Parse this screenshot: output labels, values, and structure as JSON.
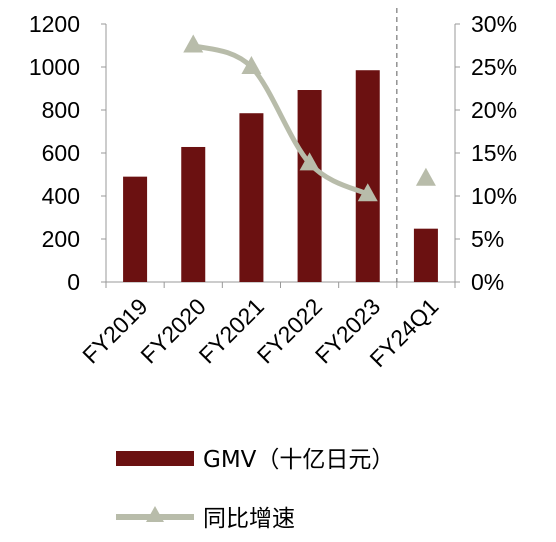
{
  "chart_data": {
    "type": "bar",
    "categories": [
      "FY2019",
      "FY2020",
      "FY2021",
      "FY2022",
      "FY2023",
      "FY24Q1"
    ],
    "series": [
      {
        "name": "GMV（十亿日元）",
        "type": "bar",
        "axis": "left",
        "color": "#6b1111",
        "values": [
          490,
          628,
          785,
          893,
          985,
          248
        ]
      },
      {
        "name": "同比增速",
        "type": "line",
        "axis": "right",
        "color": "#b8bcaa",
        "marker": "triangle",
        "values": [
          null,
          0.275,
          0.25,
          0.138,
          0.102,
          0.12
        ],
        "connected_through": "FY2023"
      }
    ],
    "y_left": {
      "lim": [
        0,
        1200
      ],
      "ticks": [
        "0",
        "200",
        "400",
        "600",
        "800",
        "1000",
        "1200"
      ]
    },
    "y_right": {
      "lim": [
        0,
        0.3
      ],
      "ticks": [
        "0%",
        "5%",
        "10%",
        "15%",
        "20%",
        "25%",
        "30%"
      ]
    },
    "separator_before": "FY24Q1",
    "legend_position": "bottom",
    "grid": false
  }
}
